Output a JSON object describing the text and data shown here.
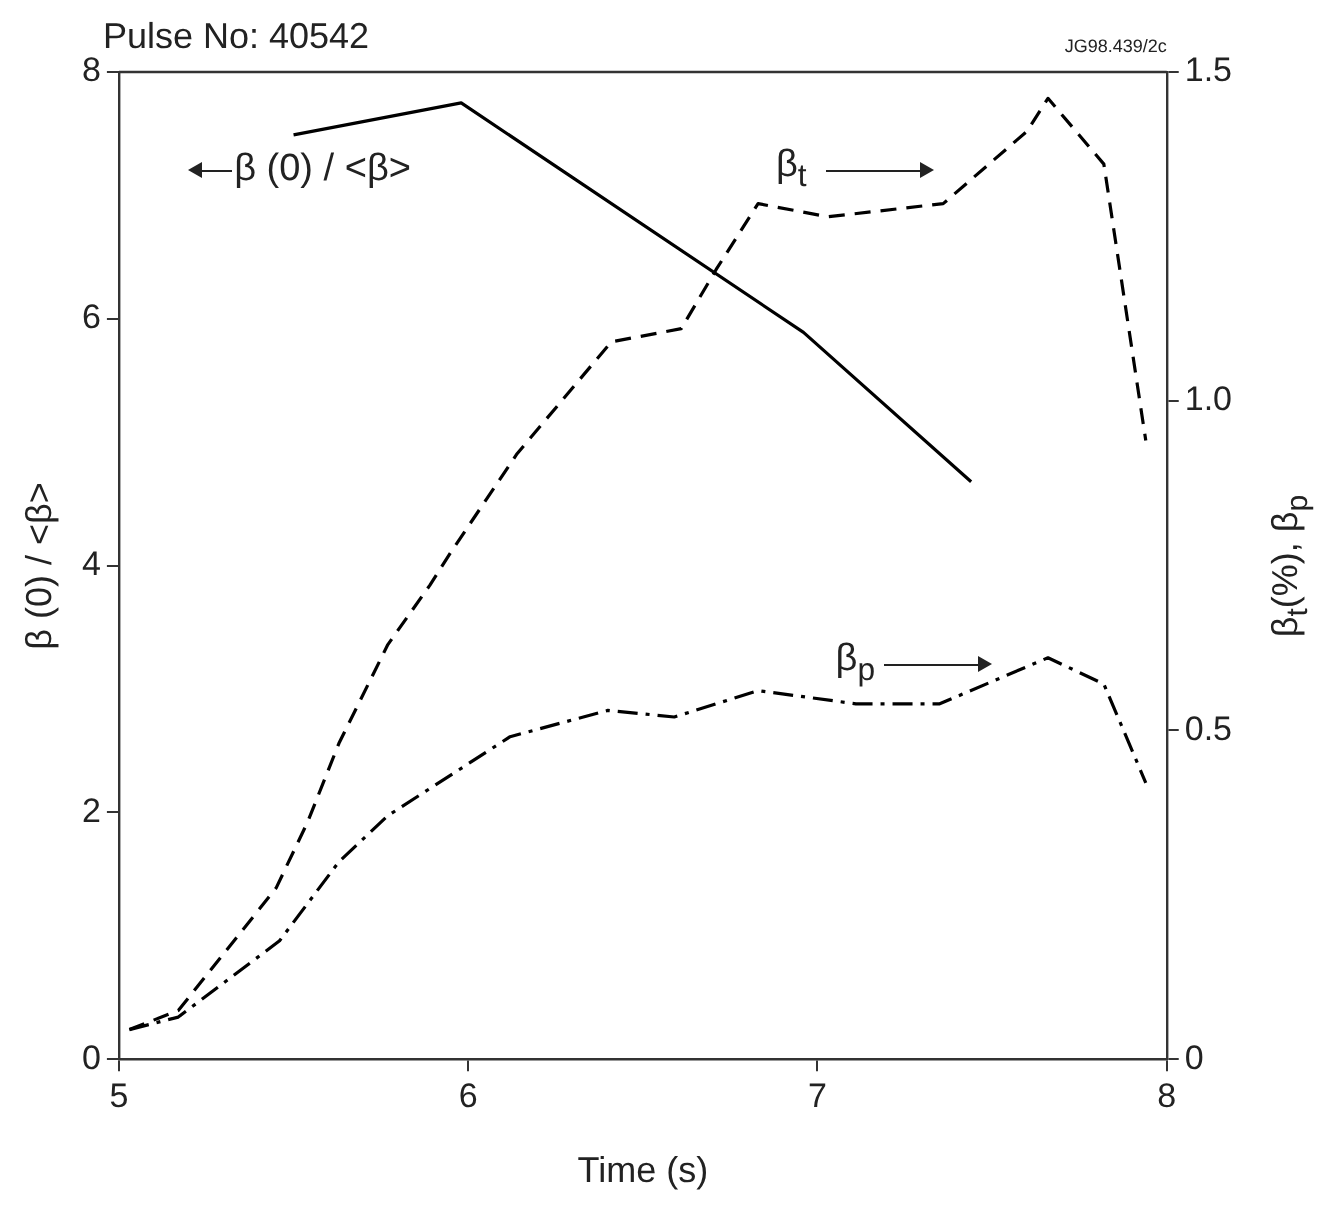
{
  "chart_data": {
    "type": "line",
    "title": "Pulse No: 40542",
    "xlabel": "Time (s)",
    "ylabel": "β (0) / <β>",
    "y2label": "β$_{t}$(%), β$_{p}$",
    "annotations": [
      "JG98.439/2c"
    ],
    "xlim": [
      5,
      8
    ],
    "xticks": [
      5,
      6,
      7,
      8
    ],
    "ylim": [
      0,
      8
    ],
    "yticks": [
      0,
      2,
      4,
      6,
      8
    ],
    "y2lim": [
      0,
      1.5
    ],
    "y2ticks": [
      0,
      0.5,
      {
        "value": 1,
        "label": "1.0"
      },
      1.5
    ],
    "grid": false,
    "legend": false,
    "marker": "none",
    "series": [
      {
        "name": "β (0) / <β>",
        "color": "#000000",
        "line_style": "solid",
        "x": [
          5.5,
          5.98,
          6.96,
          7.44
        ],
        "values": [
          7.49,
          7.75,
          5.89,
          4.68
        ]
      },
      {
        "name": "β$_{t}$",
        "color": "#000000",
        "line_style": "dashed",
        "axis": "y2",
        "x": [
          5.03,
          5.17,
          5.45,
          5.54,
          5.63,
          5.77,
          5.89,
          5.95,
          6.14,
          6.41,
          6.61,
          6.71,
          6.83,
          7.03,
          7.36,
          7.6,
          7.66,
          7.82,
          7.94
        ],
        "values": [
          0.045,
          0.074,
          0.26,
          0.36,
          0.48,
          0.63,
          0.72,
          0.77,
          0.92,
          1.09,
          1.11,
          1.2,
          1.3,
          1.28,
          1.3,
          1.41,
          1.46,
          1.36,
          0.94
        ]
      },
      {
        "name": "β$_{p}$",
        "color": "#000000",
        "line_style": "dotted",
        "axis": "y2",
        "x": [
          5.03,
          5.17,
          5.46,
          5.63,
          5.77,
          6.12,
          6.4,
          6.59,
          6.83,
          7.11,
          7.35,
          7.66,
          7.82,
          7.94
        ],
        "values": [
          0.045,
          0.064,
          0.18,
          0.3,
          0.37,
          0.49,
          0.53,
          0.52,
          0.56,
          0.54,
          0.54,
          0.61,
          0.57,
          0.42
        ]
      }
    ]
  }
}
